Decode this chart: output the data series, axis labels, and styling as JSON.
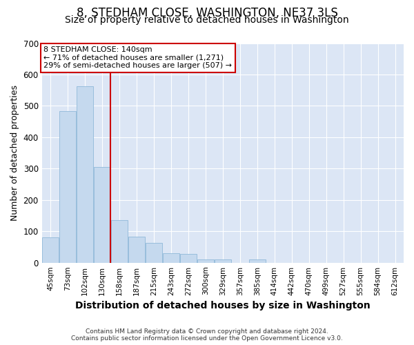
{
  "title_line1": "8, STEDHAM CLOSE, WASHINGTON, NE37 3LS",
  "title_line2": "Size of property relative to detached houses in Washington",
  "xlabel": "Distribution of detached houses by size in Washington",
  "ylabel": "Number of detached properties",
  "footnote": "Contains HM Land Registry data © Crown copyright and database right 2024.\nContains public sector information licensed under the Open Government Licence v3.0.",
  "categories": [
    "45sqm",
    "73sqm",
    "102sqm",
    "130sqm",
    "158sqm",
    "187sqm",
    "215sqm",
    "243sqm",
    "272sqm",
    "300sqm",
    "329sqm",
    "357sqm",
    "385sqm",
    "414sqm",
    "442sqm",
    "470sqm",
    "499sqm",
    "527sqm",
    "555sqm",
    "584sqm",
    "612sqm"
  ],
  "values": [
    80,
    484,
    563,
    305,
    135,
    83,
    62,
    31,
    27,
    11,
    10,
    0,
    11,
    0,
    0,
    0,
    0,
    0,
    0,
    0,
    0
  ],
  "bar_color": "#c5d9ee",
  "bar_edge_color": "#8fb8d8",
  "vline_x_idx": 3,
  "vline_color": "#cc0000",
  "annotation_line1": "8 STEDHAM CLOSE: 140sqm",
  "annotation_line2": "← 71% of detached houses are smaller (1,271)",
  "annotation_line3": "29% of semi-detached houses are larger (507) →",
  "annotation_box_color": "#ffffff",
  "annotation_box_edge": "#cc0000",
  "ylim": [
    0,
    700
  ],
  "yticks": [
    0,
    100,
    200,
    300,
    400,
    500,
    600,
    700
  ],
  "fig_bg_color": "#ffffff",
  "plot_bg": "#dce6f5",
  "grid_color": "#ffffff",
  "title_fontsize": 12,
  "subtitle_fontsize": 10,
  "ylabel_fontsize": 9,
  "xlabel_fontsize": 10
}
